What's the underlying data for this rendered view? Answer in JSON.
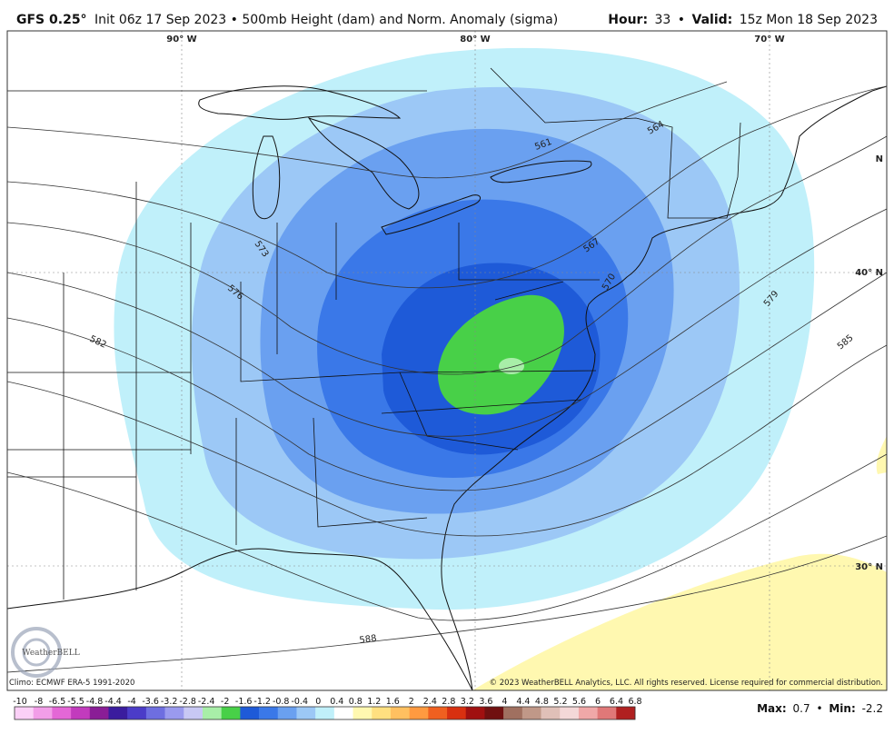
{
  "header": {
    "model": "GFS 0.25°",
    "run": "Init 06z 17 Sep 2023 • 500mb Height (dam) and Norm. Anomaly (sigma)",
    "hour_label": "Hour:",
    "hour": "33",
    "separator": "•",
    "valid_label": "Valid:",
    "valid": "15z Mon 18 Sep 2023"
  },
  "map": {
    "longitude_labels": [
      "90° W",
      "80° W",
      "70° W"
    ],
    "latitude_labels": [
      "40° N",
      "30° N",
      "N"
    ],
    "contour_labels": [
      "561",
      "564",
      "573",
      "567",
      "576",
      "570",
      "579",
      "582",
      "585",
      "588"
    ]
  },
  "logo": "WeatherBELL",
  "footer": {
    "climo": "Climo: ECMWF ERA-5 1991-2020",
    "copyright": "© 2023 WeatherBELL Analytics, LLC. All rights reserved. License required for commercial distribution."
  },
  "colorbar": {
    "ticks": [
      -10,
      -8,
      -6.5,
      -5.5,
      -4.8,
      -4.4,
      -4,
      -3.6,
      -3.2,
      -2.8,
      -2.4,
      -2,
      -1.6,
      -1.2,
      -0.8,
      -0.4,
      0,
      0.4,
      0.8,
      1.2,
      1.6,
      2,
      2.4,
      2.8,
      3.2,
      3.6,
      4,
      4.4,
      4.8,
      5.2,
      5.6,
      6,
      6.4,
      6.8
    ],
    "colors": [
      "#fbd0f7",
      "#f29ee8",
      "#e467d6",
      "#c23bbd",
      "#8a1d96",
      "#3a1c9e",
      "#4b3cc8",
      "#6e6ee0",
      "#9a9aee",
      "#c8c8f4",
      "#a8eea8",
      "#48d048",
      "#1e5ad8",
      "#3a78e8",
      "#6aa0f0",
      "#9cc8f6",
      "#c0f0fa",
      "#ffffff",
      "#fff8b0",
      "#ffe080",
      "#ffc060",
      "#ff9a40",
      "#f06020",
      "#d83010",
      "#a01010",
      "#701010",
      "#a07060",
      "#c09888",
      "#e0c0b8",
      "#f4d8d8",
      "#f0a8a8",
      "#e07878",
      "#b02020"
    ]
  },
  "stats": {
    "max_label": "Max:",
    "max": "0.7",
    "separator": "•",
    "min_label": "Min:",
    "min": "-2.2"
  }
}
